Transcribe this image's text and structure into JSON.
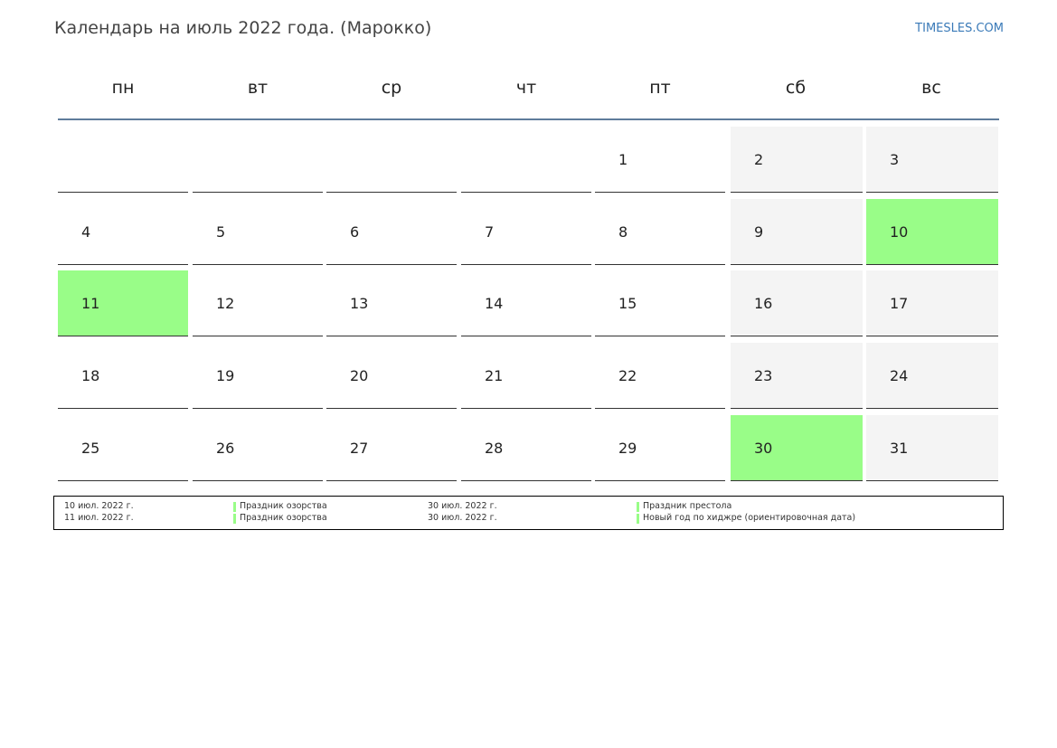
{
  "header": {
    "title": "Календарь на июль 2022 года. (Марокко)",
    "site": "TIMESLES.COM"
  },
  "weekdays": [
    "пн",
    "вт",
    "ср",
    "чт",
    "пт",
    "сб",
    "вс"
  ],
  "weeks": [
    [
      null,
      null,
      null,
      null,
      {
        "day": 1,
        "holiday": false
      },
      {
        "day": 2,
        "holiday": false
      },
      {
        "day": 3,
        "holiday": false
      }
    ],
    [
      {
        "day": 4,
        "holiday": false
      },
      {
        "day": 5,
        "holiday": false
      },
      {
        "day": 6,
        "holiday": false
      },
      {
        "day": 7,
        "holiday": false
      },
      {
        "day": 8,
        "holiday": false
      },
      {
        "day": 9,
        "holiday": false
      },
      {
        "day": 10,
        "holiday": true
      }
    ],
    [
      {
        "day": 11,
        "holiday": true
      },
      {
        "day": 12,
        "holiday": false
      },
      {
        "day": 13,
        "holiday": false
      },
      {
        "day": 14,
        "holiday": false
      },
      {
        "day": 15,
        "holiday": false
      },
      {
        "day": 16,
        "holiday": false
      },
      {
        "day": 17,
        "holiday": false
      }
    ],
    [
      {
        "day": 18,
        "holiday": false
      },
      {
        "day": 19,
        "holiday": false
      },
      {
        "day": 20,
        "holiday": false
      },
      {
        "day": 21,
        "holiday": false
      },
      {
        "day": 22,
        "holiday": false
      },
      {
        "day": 23,
        "holiday": false
      },
      {
        "day": 24,
        "holiday": false
      }
    ],
    [
      {
        "day": 25,
        "holiday": false
      },
      {
        "day": 26,
        "holiday": false
      },
      {
        "day": 27,
        "holiday": false
      },
      {
        "day": 28,
        "holiday": false
      },
      {
        "day": 29,
        "holiday": false
      },
      {
        "day": 30,
        "holiday": true
      },
      {
        "day": 31,
        "holiday": false
      }
    ]
  ],
  "holidays": [
    {
      "date": "10 июл. 2022 г.",
      "name": "Праздник озорства"
    },
    {
      "date": "11 июл. 2022 г.",
      "name": "Праздник озорства"
    },
    {
      "date": "30 июл. 2022 г.",
      "name": "Праздник престола"
    },
    {
      "date": "30 июл. 2022 г.",
      "name": "Новый год по хиджре (ориентировочная дата)"
    }
  ]
}
